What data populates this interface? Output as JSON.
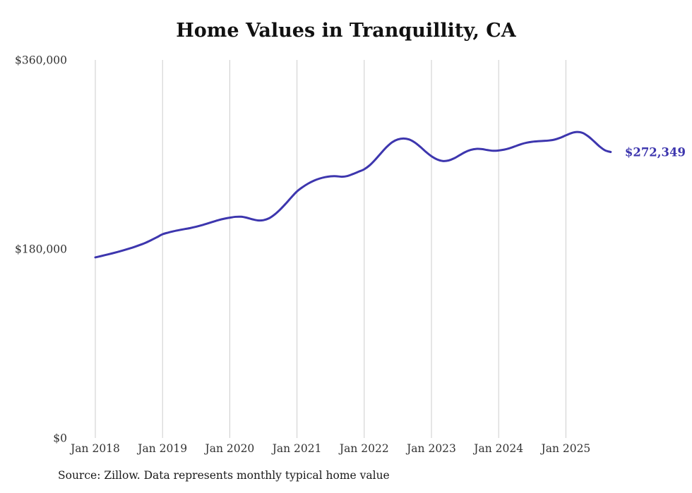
{
  "page": {
    "source_note": "Source: Zillow. Data represents monthly typical home value"
  },
  "colors": {
    "line": "#3d36ae",
    "grid": "#cccccc",
    "axis_text": "#333333",
    "title_text": "#111111"
  },
  "chart_data": {
    "type": "line",
    "title": "Home Values in Tranquillity, CA",
    "series_name": "Typical home value",
    "unit": "USD",
    "x_start": "2018-01",
    "x_interval": "month",
    "x_tick_labels": [
      "Jan 2018",
      "Jan 2019",
      "Jan 2020",
      "Jan 2021",
      "Jan 2022",
      "Jan 2023",
      "Jan 2024",
      "Jan 2025"
    ],
    "y_ticks": [
      {
        "value": 0,
        "label": "$0"
      },
      {
        "value": 180000,
        "label": "$180,000"
      },
      {
        "value": 360000,
        "label": "$360,000"
      }
    ],
    "ylim": [
      0,
      360000
    ],
    "grid": "vertical-only",
    "legend": "none",
    "end_label": "$272,349",
    "end_value": 272349,
    "values": [
      172000,
      173200,
      174500,
      175800,
      177200,
      178700,
      180300,
      182000,
      183900,
      186000,
      188500,
      191200,
      194000,
      195600,
      196900,
      198000,
      199000,
      200000,
      201200,
      202600,
      204200,
      205900,
      207500,
      208800,
      209800,
      210600,
      210700,
      209800,
      208300,
      207200,
      207400,
      209200,
      212800,
      217600,
      223200,
      229200,
      234800,
      238900,
      242300,
      245000,
      247000,
      248400,
      249200,
      249300,
      248800,
      249500,
      251400,
      253600,
      255900,
      259800,
      265200,
      271300,
      277100,
      281700,
      284300,
      285200,
      284300,
      281500,
      277300,
      272500,
      268300,
      265300,
      263800,
      264200,
      266200,
      269200,
      272200,
      274300,
      275300,
      275100,
      274200,
      273500,
      273800,
      274600,
      276000,
      277900,
      279800,
      281200,
      282100,
      282600,
      282900,
      283300,
      284200,
      285900,
      288200,
      290400,
      291400,
      290500,
      287200,
      282600,
      277700,
      273900,
      272349
    ]
  }
}
